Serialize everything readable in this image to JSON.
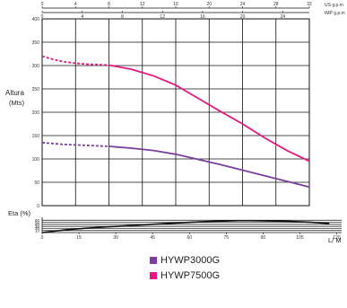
{
  "chart_data": [
    {
      "type": "line",
      "ylabel": "Altura\n(Mts)",
      "xlim": [
        0,
        120
      ],
      "ylim": [
        0,
        400
      ],
      "x_ticks": [
        0,
        15,
        30,
        45,
        60,
        75,
        90,
        105,
        120
      ],
      "y_ticks": [
        0,
        50,
        100,
        150,
        200,
        250,
        300,
        350,
        400
      ],
      "top_axes": [
        {
          "label": "US g.p.m",
          "ticks": [
            "0",
            "4",
            "8",
            "12",
            "16",
            "20",
            "24",
            "28",
            "32"
          ],
          "values": [
            0,
            4,
            8,
            12,
            16,
            20,
            24,
            28,
            32
          ]
        },
        {
          "label": "IMP g.p.m",
          "ticks": [
            "0",
            "4",
            "8",
            "12",
            "16",
            "20",
            "24"
          ],
          "values": [
            0,
            4,
            8,
            12,
            16,
            20,
            24
          ]
        }
      ],
      "grid": true,
      "series": [
        {
          "name": "HYWP3000G",
          "color": "#7b3f9e",
          "dashed": {
            "x": [
              0,
              5,
              10,
              15,
              20,
              25,
              30
            ],
            "y": [
              135,
              133,
              131,
              130,
              129,
              128,
              127
            ]
          },
          "solid": {
            "x": [
              30,
              40,
              50,
              60,
              70,
              80,
              90,
              100,
              110,
              120
            ],
            "y": [
              127,
              123,
              118,
              110,
              99,
              88,
              76,
              64,
              52,
              40
            ]
          }
        },
        {
          "name": "HYWP7500G",
          "color": "#e8177f",
          "dashed": {
            "x": [
              0,
              5,
              10,
              15,
              20,
              25,
              30
            ],
            "y": [
              320,
              313,
              308,
              305,
              303,
              302,
              301
            ]
          },
          "solid": {
            "x": [
              30,
              40,
              50,
              60,
              70,
              80,
              90,
              100,
              110,
              120
            ],
            "y": [
              301,
              292,
              278,
              258,
              230,
              202,
              175,
              145,
              118,
              95
            ]
          }
        }
      ]
    },
    {
      "type": "line",
      "ylabel": "Eta (%)",
      "xlabel": "L/ M",
      "xlim": [
        0,
        120
      ],
      "ylim": [
        0,
        70
      ],
      "x_ticks": [
        0,
        15,
        30,
        45,
        60,
        75,
        90,
        105,
        120
      ],
      "y_ticks": [
        0,
        10,
        20,
        30,
        40,
        50,
        60
      ],
      "grid": true,
      "series": [
        {
          "color": "#111111",
          "x": [
            0,
            10,
            20,
            30,
            40,
            50,
            60,
            70,
            80,
            85,
            90,
            100,
            110,
            117
          ],
          "y": [
            0,
            14,
            23,
            30,
            37,
            44,
            50,
            55,
            58,
            58,
            57,
            55,
            50,
            44
          ]
        }
      ]
    }
  ],
  "legend": [
    {
      "label": "HYWP3000G",
      "color": "#7b3f9e"
    },
    {
      "label": "HYWP7500G",
      "color": "#e8177f"
    }
  ]
}
